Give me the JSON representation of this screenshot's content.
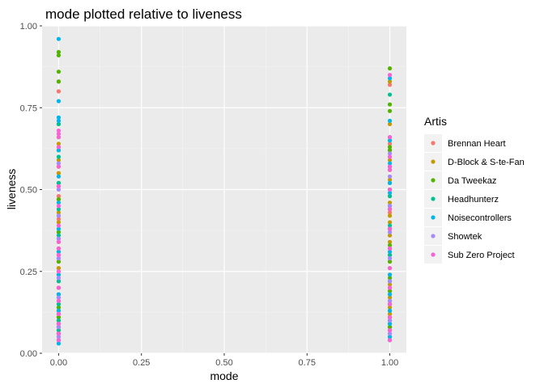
{
  "chart_data": {
    "type": "scatter",
    "title": "mode plotted relative to liveness",
    "xlabel": "mode",
    "ylabel": "liveness",
    "xlim": [
      -0.05,
      1.05
    ],
    "ylim": [
      0.0,
      1.0
    ],
    "x_ticks": [
      "0.00",
      "0.25",
      "0.50",
      "0.75",
      "1.00"
    ],
    "y_ticks": [
      "0.00",
      "0.25",
      "0.50",
      "0.75",
      "1.00"
    ],
    "legend": {
      "title": "Artis",
      "position": "right"
    },
    "background": "#ebebeb",
    "grid": true,
    "series": [
      {
        "name": "Brennan Heart",
        "color": "#F8766D",
        "x0": [
          0.05,
          0.07,
          0.09,
          0.1,
          0.12,
          0.14,
          0.18,
          0.22,
          0.26,
          0.3,
          0.35,
          0.41,
          0.48,
          0.55,
          0.63,
          0.8,
          0.83
        ],
        "x1": [
          0.06,
          0.08,
          0.1,
          0.12,
          0.15,
          0.19,
          0.24,
          0.3,
          0.36,
          0.43,
          0.52,
          0.64,
          0.82
        ]
      },
      {
        "name": "D-Block & S-te-Fan",
        "color": "#C49A00",
        "x0": [
          0.06,
          0.07,
          0.08,
          0.09,
          0.1,
          0.11,
          0.12,
          0.13,
          0.14,
          0.16,
          0.18,
          0.2,
          0.22,
          0.24,
          0.26,
          0.28,
          0.31,
          0.34,
          0.37,
          0.4,
          0.43,
          0.47,
          0.51,
          0.55,
          0.59,
          0.62,
          0.64
        ],
        "x1": [
          0.05,
          0.07,
          0.08,
          0.09,
          0.1,
          0.11,
          0.12,
          0.13,
          0.14,
          0.15,
          0.16,
          0.17,
          0.18,
          0.19,
          0.2,
          0.21,
          0.22,
          0.24,
          0.26,
          0.28,
          0.3,
          0.32,
          0.34,
          0.36,
          0.38,
          0.4,
          0.42,
          0.44,
          0.46,
          0.48,
          0.5,
          0.53,
          0.56,
          0.59,
          0.62,
          0.65,
          0.7,
          0.83
        ]
      },
      {
        "name": "Da Tweekaz",
        "color": "#53B400",
        "x0": [
          0.04,
          0.06,
          0.08,
          0.11,
          0.14,
          0.17,
          0.2,
          0.24,
          0.28,
          0.32,
          0.37,
          0.42,
          0.47,
          0.52,
          0.57,
          0.62,
          0.66,
          0.7,
          0.83,
          0.86,
          0.91,
          0.92
        ],
        "x1": [
          0.05,
          0.08,
          0.11,
          0.15,
          0.19,
          0.23,
          0.28,
          0.33,
          0.38,
          0.44,
          0.5,
          0.56,
          0.62,
          0.63,
          0.74,
          0.76,
          0.87
        ]
      },
      {
        "name": "Headhunterz",
        "color": "#00C094",
        "x0": [
          0.04,
          0.07,
          0.1,
          0.15,
          0.22,
          0.29,
          0.36,
          0.44,
          0.52,
          0.6,
          0.7
        ],
        "x1": [
          0.04,
          0.09,
          0.15,
          0.22,
          0.3,
          0.39,
          0.48,
          0.57,
          0.66,
          0.79
        ]
      },
      {
        "name": "Noisecontrollers",
        "color": "#00B6EB",
        "x0": [
          0.03,
          0.06,
          0.09,
          0.13,
          0.18,
          0.24,
          0.31,
          0.38,
          0.46,
          0.54,
          0.62,
          0.71,
          0.72,
          0.77,
          0.96
        ],
        "x1": [
          0.05,
          0.09,
          0.13,
          0.18,
          0.24,
          0.31,
          0.38,
          0.45,
          0.49,
          0.52,
          0.58,
          0.65,
          0.71,
          0.84
        ]
      },
      {
        "name": "Showtek",
        "color": "#A58AFF",
        "x0": [
          0.05,
          0.08,
          0.12,
          0.17,
          0.23,
          0.29,
          0.35,
          0.42,
          0.5,
          0.58
        ],
        "x1": [
          0.06,
          0.1,
          0.16,
          0.22,
          0.29,
          0.37,
          0.45,
          0.54,
          0.61
        ]
      },
      {
        "name": "Sub Zero Project",
        "color": "#FB61D7",
        "x0": [
          0.04,
          0.06,
          0.09,
          0.12,
          0.16,
          0.2,
          0.25,
          0.3,
          0.32,
          0.34,
          0.39,
          0.45,
          0.51,
          0.57,
          0.63,
          0.66,
          0.67,
          0.68
        ],
        "x1": [
          0.04,
          0.07,
          0.11,
          0.15,
          0.2,
          0.26,
          0.32,
          0.38,
          0.44,
          0.5,
          0.56,
          0.57,
          0.6,
          0.66,
          0.85
        ]
      }
    ]
  }
}
